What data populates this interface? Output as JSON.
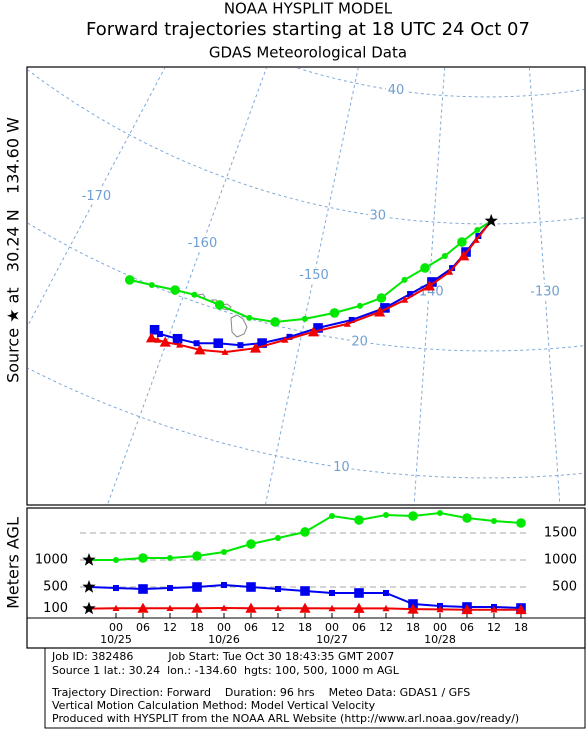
{
  "header": {
    "title": "NOAA HYSPLIT MODEL",
    "subtitle": "Forward trajectories starting at 18 UTC 24 Oct 07",
    "data_source": "GDAS Meteorological Data"
  },
  "chart_data": [
    {
      "type": "map",
      "axis_label": "Source ★ at   30.24 N   134.60 W",
      "source": {
        "lat": 30.24,
        "lon": -134.6
      },
      "lat_lines": [
        10,
        20,
        30,
        40
      ],
      "lon_lines": [
        -170,
        -160,
        -150,
        -140,
        -130
      ],
      "series": [
        {
          "color": "#00e800",
          "marker": "circle",
          "lat": [
            30.24,
            29.52,
            28.55,
            27.39,
            26.35,
            25.27,
            23.65,
            22.8,
            21.93,
            21.02,
            20.26,
            20.06,
            20.37,
            20.5,
            20.33,
            20.03,
            19.72
          ],
          "lon": [
            -134.6,
            -135.9,
            -137.3,
            -138.8,
            -140.5,
            -142.2,
            -144.0,
            -145.7,
            -147.7,
            -150.0,
            -152.3,
            -154.4,
            -157.0,
            -159.2,
            -160.8,
            -162.7,
            -164.5
          ]
        },
        {
          "color": "#0000f0",
          "marker": "square",
          "lat": [
            30.24,
            29.05,
            27.77,
            26.47,
            25.29,
            24.21,
            22.91,
            21.61,
            20.53,
            19.38,
            18.4,
            17.8,
            17.46,
            16.94,
            16.79,
            16.67,
            16.83
          ],
          "lon": [
            -134.6,
            -135.8,
            -136.9,
            -138.1,
            -139.8,
            -141.6,
            -143.6,
            -146.2,
            -148.8,
            -150.9,
            -152.9,
            -154.5,
            -156.2,
            -157.8,
            -159.3,
            -160.7,
            -161.2
          ]
        },
        {
          "color": "#f00000",
          "marker": "triangle",
          "lat": [
            30.24,
            28.73,
            27.46,
            26.16,
            24.96,
            23.7,
            22.54,
            21.25,
            20.16,
            19.06,
            17.88,
            16.94,
            16.52,
            16.39,
            16.21,
            16.17,
            16.15
          ],
          "lon": [
            -134.6,
            -136.0,
            -137.1,
            -138.3,
            -140.0,
            -142.0,
            -144.0,
            -146.5,
            -149.1,
            -151.2,
            -153.3,
            -155.5,
            -157.4,
            -159.0,
            -160.1,
            -160.7,
            -161.2
          ]
        }
      ]
    },
    {
      "type": "line",
      "ylabel": "Meters AGL",
      "categories": [
        null,
        "00",
        "06",
        "12",
        "18",
        "00",
        "06",
        "12",
        "18",
        "00",
        "06",
        "12",
        "18",
        "00",
        "06",
        "12",
        "18"
      ],
      "dates": [
        null,
        "10/25",
        null,
        null,
        null,
        "10/26",
        null,
        null,
        null,
        "10/27",
        null,
        null,
        null,
        "10/28",
        null,
        null,
        null
      ],
      "ylim": [
        -74,
        1963
      ],
      "yticks": [
        500,
        1000,
        1500
      ],
      "grid": true,
      "series": [
        {
          "name": "1000",
          "color": "#00e800",
          "marker": "circle",
          "values": [
            1000,
            1000,
            1037,
            1037,
            1074,
            1148,
            1296,
            1407,
            1519,
            1815,
            1741,
            1833,
            1815,
            1870,
            1778,
            1722,
            1685
          ]
        },
        {
          "name": "500",
          "color": "#0000f0",
          "marker": "square",
          "values": [
            500,
            481,
            463,
            481,
            500,
            537,
            500,
            463,
            426,
            389,
            389,
            389,
            185,
            148,
            130,
            130,
            111
          ]
        },
        {
          "name": "100",
          "color": "#f00000",
          "marker": "triangle",
          "values": [
            100,
            107,
            107,
            107,
            107,
            111,
            107,
            107,
            107,
            104,
            104,
            104,
            90,
            85,
            80,
            80,
            80
          ]
        }
      ]
    }
  ],
  "footer": {
    "lines": [
      "Job ID: 382486          Job Start: Tue Oct 30 18:43:35 GMT 2007",
      "Source 1 lat.: 30.24  lon.: -134.60  hgts: 100, 500, 1000 m AGL",
      "Trajectory Direction: Forward    Duration: 96 hrs    Meteo Data: GDAS1 / GFS",
      "Vertical Motion Calculation Method: Model Vertical Velocity",
      "Produced with HYSPLIT from the NOAA ARL Website (http://www.arl.noaa.gov/ready/)"
    ]
  }
}
